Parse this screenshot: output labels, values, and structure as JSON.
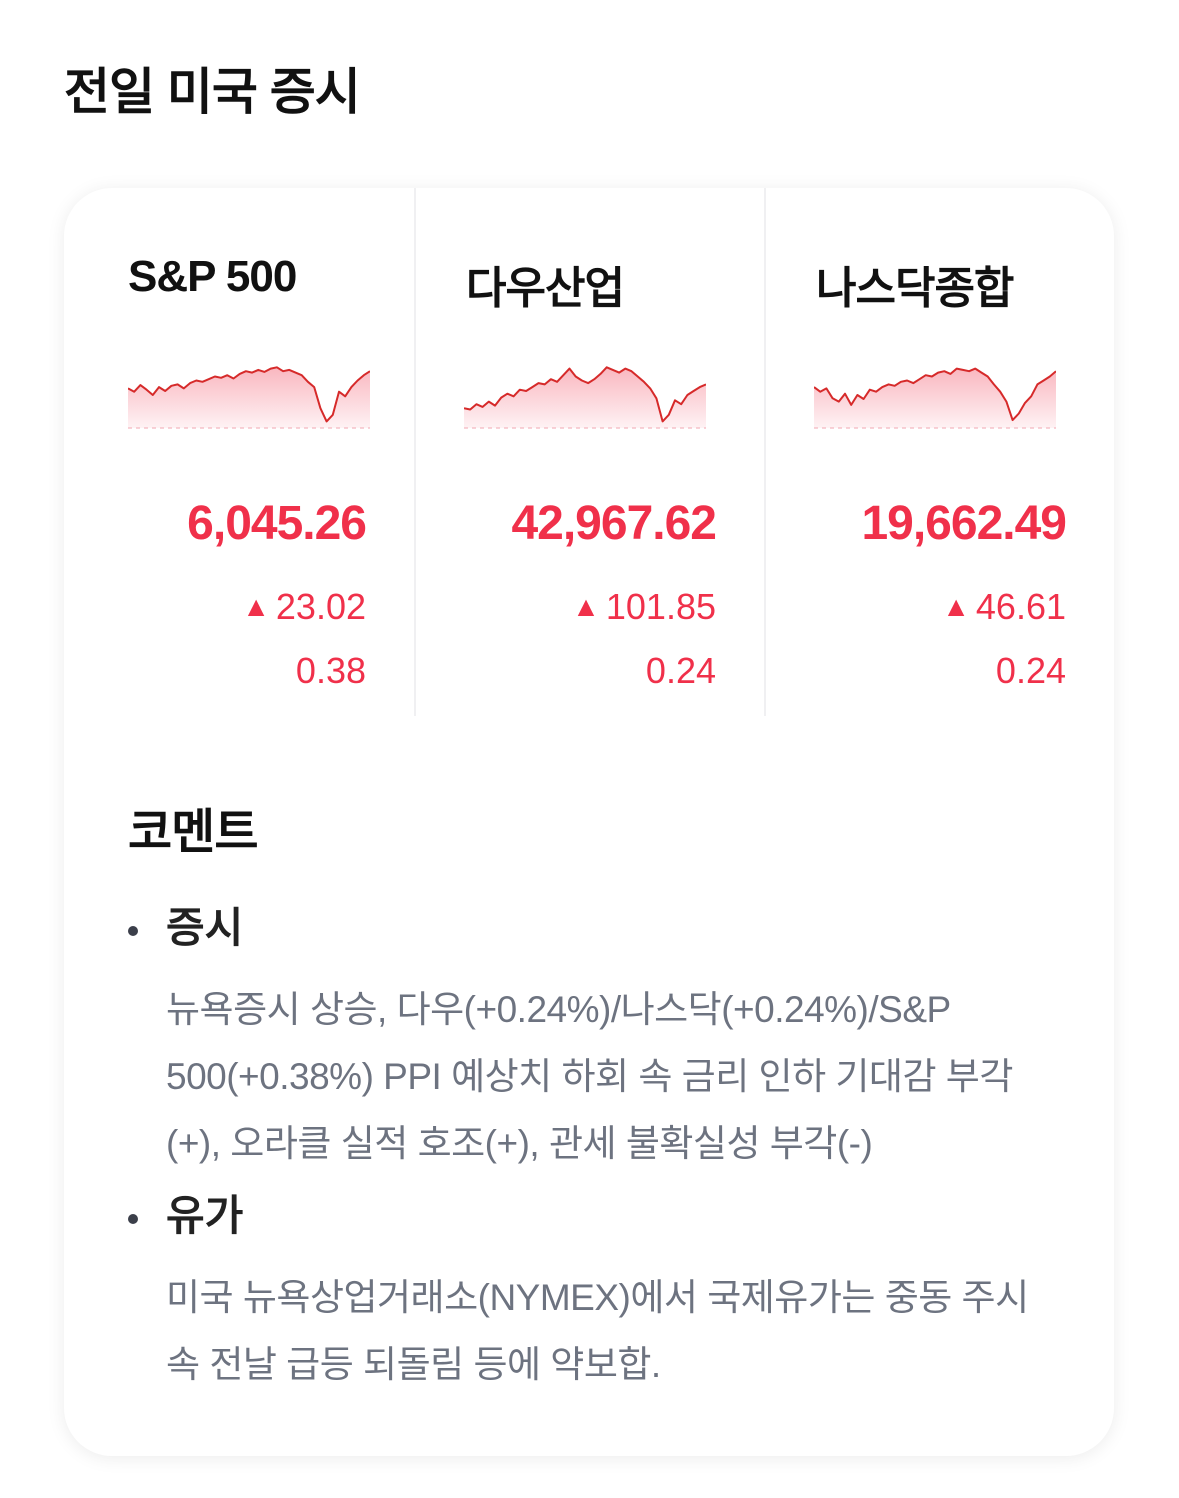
{
  "page": {
    "title": "전일 미국 증시"
  },
  "indices": [
    {
      "name": "S&P 500",
      "value": "6,045.26",
      "change_arrow": "▲",
      "change": "23.02",
      "rate": "0.38",
      "color": "#f0304a",
      "sparkline": [
        0.6,
        0.55,
        0.65,
        0.58,
        0.5,
        0.62,
        0.56,
        0.64,
        0.66,
        0.6,
        0.68,
        0.72,
        0.7,
        0.74,
        0.78,
        0.76,
        0.8,
        0.75,
        0.82,
        0.86,
        0.84,
        0.88,
        0.85,
        0.9,
        0.92,
        0.86,
        0.88,
        0.84,
        0.8,
        0.7,
        0.62,
        0.3,
        0.1,
        0.2,
        0.55,
        0.48,
        0.62,
        0.72,
        0.8,
        0.86
      ]
    },
    {
      "name": "다우산업",
      "value": "42,967.62",
      "change_arrow": "▲",
      "change": "101.85",
      "rate": "0.24",
      "color": "#f0304a",
      "sparkline": [
        0.3,
        0.28,
        0.36,
        0.32,
        0.4,
        0.34,
        0.46,
        0.52,
        0.48,
        0.58,
        0.56,
        0.62,
        0.68,
        0.66,
        0.74,
        0.7,
        0.8,
        0.9,
        0.78,
        0.72,
        0.68,
        0.74,
        0.82,
        0.92,
        0.88,
        0.84,
        0.9,
        0.86,
        0.78,
        0.7,
        0.6,
        0.45,
        0.1,
        0.2,
        0.42,
        0.36,
        0.5,
        0.56,
        0.62,
        0.66
      ]
    },
    {
      "name": "나스닥종합",
      "value": "19,662.49",
      "change_arrow": "▲",
      "change": "46.61",
      "rate": "0.24",
      "color": "#f0304a",
      "sparkline": [
        0.62,
        0.55,
        0.6,
        0.45,
        0.4,
        0.52,
        0.35,
        0.5,
        0.44,
        0.58,
        0.55,
        0.62,
        0.66,
        0.64,
        0.7,
        0.72,
        0.68,
        0.74,
        0.8,
        0.78,
        0.84,
        0.86,
        0.82,
        0.9,
        0.88,
        0.86,
        0.9,
        0.84,
        0.78,
        0.66,
        0.55,
        0.4,
        0.12,
        0.22,
        0.38,
        0.48,
        0.66,
        0.72,
        0.78,
        0.86
      ]
    }
  ],
  "comment": {
    "title": "코멘트",
    "sections": [
      {
        "heading": "증시",
        "body": "뉴욕증시 상승, 다우(+0.24%)/나스닥(+0.24%)/S&P 500(+0.38%) PPI 예상치 하회 속 금리 인하 기대감 부각(+), 오라클 실적 호조(+), 관세 불확실성 부각(-)"
      },
      {
        "heading": "유가",
        "body": "미국 뉴욕상업거래소(NYMEX)에서 국제유가는 중동 주시 속 전날 급등 되돌림 등에 약보합."
      }
    ]
  }
}
